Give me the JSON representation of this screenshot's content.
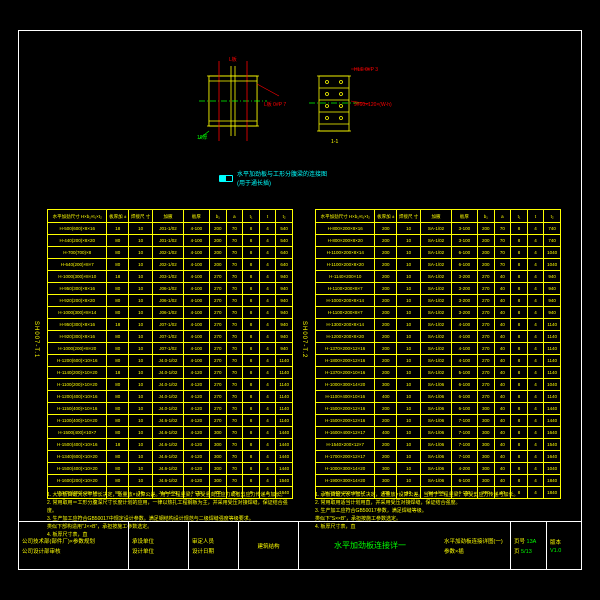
{
  "colors": {
    "bg": "#000",
    "frame": "#fff",
    "line": "#ff0",
    "cyan": "#00ffff",
    "green": "#00ff00",
    "red": "#ff0000"
  },
  "diagram": {
    "title": "水平加劲板与工形分腹梁的连接图",
    "subtitle": "(用于通长插)",
    "labels": [
      "L板",
      "HLE 0#P 3",
      "9#60×120×(W-h)",
      "1-1",
      "10厚",
      "L板 0#P 7"
    ]
  },
  "sideLabelLeft": "SH007-T.1",
  "sideLabelRight": "SH007-T.2",
  "tableLeft": {
    "headers": [
      "水平加劲尺寸\nH×b₁×t₁×t₂",
      "板厚加\n±",
      "焊接尺\n寸",
      "加腋",
      "板厚",
      "b₁",
      "a",
      "t₁",
      "t",
      "t₂"
    ],
    "rows": [
      [
        "H-500(600)×8×16",
        "18",
        "10",
        "J01-1/02",
        "4-100",
        "200",
        "70",
        "8",
        "4",
        "540"
      ],
      [
        "H-440(200)×8×20",
        "80",
        "10",
        "J01-1/02",
        "4-100",
        "200",
        "70",
        "8",
        "4",
        "540"
      ],
      [
        "H-700(700)×8",
        "80",
        "10",
        "J02-1/02",
        "4-100",
        "200",
        "70",
        "8",
        "4",
        "640"
      ],
      [
        "H-640(200)×8×7",
        "80",
        "10",
        "J02-1/02",
        "4-100",
        "200",
        "70",
        "8",
        "4",
        "640"
      ],
      [
        "H-1000(300)×8×10",
        "18",
        "10",
        "J03-1/02",
        "4-100",
        "270",
        "70",
        "8",
        "4",
        "940"
      ],
      [
        "H-950(300)×8×16",
        "80",
        "10",
        "J06-1/02",
        "4-100",
        "270",
        "70",
        "8",
        "4",
        "940"
      ],
      [
        "H-920(200)×8×20",
        "80",
        "10",
        "J06-1/02",
        "4-100",
        "270",
        "70",
        "8",
        "4",
        "940"
      ],
      [
        "H-1000(300)×8×14",
        "80",
        "10",
        "J06-1/02",
        "4-100",
        "270",
        "70",
        "8",
        "4",
        "940"
      ],
      [
        "H-950(300)×8×16",
        "18",
        "10",
        "J07-1/02",
        "4-100",
        "270",
        "70",
        "8",
        "4",
        "940"
      ],
      [
        "H-920(300)×8×16",
        "80",
        "10",
        "J07-1/02",
        "4-100",
        "270",
        "70",
        "8",
        "4",
        "940"
      ],
      [
        "H-1000(200)×8×20",
        "80",
        "10",
        "J07-1/02",
        "4-100",
        "270",
        "70",
        "8",
        "4",
        "940"
      ],
      [
        "H-1200(600)×10×16",
        "80",
        "10",
        "J4.0-1/02",
        "4-100",
        "270",
        "70",
        "8",
        "4",
        "1140"
      ],
      [
        "H-1140(200)×10×20",
        "18",
        "10",
        "J4.0-1/02",
        "4-120",
        "270",
        "70",
        "8",
        "4",
        "1140"
      ],
      [
        "H-1100(200)×10×20",
        "80",
        "10",
        "J4.0-1/02",
        "4-120",
        "270",
        "70",
        "8",
        "4",
        "1140"
      ],
      [
        "H-1200(400)×10×16",
        "80",
        "10",
        "J4.0-1/02",
        "4-120",
        "270",
        "70",
        "8",
        "4",
        "1140"
      ],
      [
        "H-1150(400)×10×16",
        "80",
        "10",
        "J4.0-1/02",
        "4-120",
        "270",
        "70",
        "8",
        "4",
        "1140"
      ],
      [
        "H-1100(400)×10×20",
        "80",
        "10",
        "J4.6-1/02",
        "4-120",
        "270",
        "70",
        "8",
        "4",
        "1140"
      ],
      [
        "H-1500(400)×10×7",
        "80",
        "10",
        "J4.6-1/02",
        "4-120",
        "300",
        "70",
        "8",
        "4",
        "1440"
      ],
      [
        "H-1500(400)×10×16",
        "18",
        "10",
        "J4.6-1/02",
        "4-120",
        "300",
        "70",
        "8",
        "4",
        "1440"
      ],
      [
        "H-1340(600)×10×20",
        "80",
        "10",
        "J4.6-1/02",
        "4-120",
        "300",
        "70",
        "8",
        "4",
        "1440"
      ],
      [
        "H-1500(400)×10×20",
        "80",
        "10",
        "J4.6-1/02",
        "4-120",
        "300",
        "70",
        "8",
        "4",
        "1440"
      ],
      [
        "H-1600(200)×10×20",
        "80",
        "10",
        "J4.6-1/02",
        "4-120",
        "300",
        "70",
        "8",
        "4",
        "1540"
      ],
      [
        "H-1700(400)×10×16",
        "80",
        "10",
        "J4.6-1/02",
        "4-120",
        "300",
        "70",
        "8",
        "4",
        "1640"
      ]
    ]
  },
  "tableRight": {
    "headers": [
      "水平加劲尺寸\nH×b₁×t₁×t₂",
      "板厚加\n±",
      "焊接尺\n寸",
      "加腋",
      "板厚",
      "b₁",
      "a",
      "t₁",
      "t",
      "t₂"
    ],
    "rows": [
      [
        "H-800×200×8×16",
        "200",
        "10",
        "SA-1/02",
        "3-100",
        "200",
        "70",
        "8",
        "4",
        "740"
      ],
      [
        "H-800×200×8×20",
        "200",
        "10",
        "SA-1/02",
        "3-100",
        "200",
        "70",
        "8",
        "4",
        "740"
      ],
      [
        "H-1100×200×8×14",
        "200",
        "10",
        "SA-1/02",
        "6-100",
        "200",
        "70",
        "8",
        "4",
        "1040"
      ],
      [
        "H-1100×200×8×20",
        "200",
        "10",
        "SA-1/02",
        "6-100",
        "200",
        "70",
        "8",
        "4",
        "1040"
      ],
      [
        "H-1140×200×10",
        "200",
        "10",
        "SA-1/02",
        "3-200",
        "270",
        "40",
        "8",
        "4",
        "940"
      ],
      [
        "H-1100×200×8×7",
        "200",
        "10",
        "SA-1/02",
        "3-200",
        "270",
        "40",
        "8",
        "4",
        "940"
      ],
      [
        "H-1000×200×8×14",
        "200",
        "10",
        "SA-1/02",
        "3-200",
        "270",
        "40",
        "8",
        "4",
        "940"
      ],
      [
        "H-1100×200×8×7",
        "200",
        "10",
        "SA-1/02",
        "3-200",
        "270",
        "40",
        "8",
        "4",
        "940"
      ],
      [
        "H-1300×200×8×14",
        "200",
        "10",
        "SA-1/02",
        "4-100",
        "270",
        "40",
        "8",
        "4",
        "1140"
      ],
      [
        "H-1200×200×8×20",
        "200",
        "10",
        "SA-1/02",
        "4-100",
        "270",
        "40",
        "8",
        "4",
        "1140"
      ],
      [
        "H-1370×200×12×16",
        "200",
        "10",
        "SA-1/02",
        "4-100",
        "270",
        "40",
        "8",
        "4",
        "1140"
      ],
      [
        "H-1800×200×12×16",
        "200",
        "10",
        "SA-1/02",
        "4-100",
        "270",
        "40",
        "8",
        "4",
        "1140"
      ],
      [
        "H-1370×200×10×16",
        "200",
        "10",
        "SA-1/02",
        "5-100",
        "270",
        "40",
        "8",
        "4",
        "1140"
      ],
      [
        "H-1000×300×14×20",
        "300",
        "10",
        "SA-1/06",
        "6-100",
        "270",
        "40",
        "8",
        "4",
        "1040"
      ],
      [
        "H-1100×400×10×16",
        "400",
        "10",
        "SA-1/06",
        "6-100",
        "270",
        "40",
        "8",
        "4",
        "1140"
      ],
      [
        "H-1500×200×12×16",
        "200",
        "10",
        "SA-1/06",
        "6-100",
        "300",
        "40",
        "8",
        "4",
        "1440"
      ],
      [
        "H-1500×200×12×16",
        "200",
        "10",
        "SA-1/06",
        "7-100",
        "300",
        "40",
        "8",
        "4",
        "1440"
      ],
      [
        "H-1600×400×12×17",
        "400",
        "10",
        "SA-1/06",
        "7-100",
        "300",
        "40",
        "8",
        "4",
        "1640"
      ],
      [
        "H-1540×200×12×7",
        "200",
        "10",
        "SA-1/06",
        "7-100",
        "300",
        "40",
        "8",
        "4",
        "1540"
      ],
      [
        "H-1700×200×12×17",
        "200",
        "10",
        "SA-1/06",
        "7-100",
        "300",
        "40",
        "8",
        "4",
        "1640"
      ],
      [
        "H-1000×300×14×20",
        "300",
        "10",
        "SA-1/06",
        "4-200",
        "300",
        "40",
        "8",
        "4",
        "1040"
      ],
      [
        "H-1900×300×14×20",
        "300",
        "10",
        "SA-1/06",
        "6-100",
        "300",
        "40",
        "8",
        "4",
        "1840"
      ],
      [
        "H-1840×200×10×17",
        "200",
        "10",
        "SA-1/06",
        "6-100",
        "300",
        "40",
        "8",
        "4",
        "1840"
      ]
    ]
  },
  "notesLeft": [
    "1. 大承板由最大水平加长决定，适量放×设算公差。用于工程竖梁，承受竖向压应力或者剪应力传递与加长。",
    "2. 常用取用＝工形分腹深尺寸长度计划的应用，一律以热扎工程钢板为主，并采用受压对接焊缝，保证结合强度。",
    "3. 生产加工应符合GB50017中规定设计参数。满足钢结构设计规范与二级焊缝强度等级要求。",
    "   类似下部构造用\"J××B\"，承担按施工参数选定。",
    "4. 板厚尺寸表，直"
  ],
  "notesRight": [
    "1. 承板由最大水平加长决定，适量放×设算公差。当用于工程竖梁，承受剪应力传递与加长。",
    "2. 常用取用适当计划用直，并采用受压对接焊缝，保证结合强度。",
    "3. 生产加工应符合GB50017参数，满足焊缝等级。",
    "   类似下\"S××B\"，承担按施工参数选定。",
    "4. 板厚尺寸表，直"
  ],
  "titleblock": {
    "left1_a": "公司技术部(部件厂)×参数规划",
    "left1_b": "公司设计部审核",
    "left2_a": "承设单位",
    "left2_b": "设计单位",
    "left3_a": "审定人员",
    "left3_b": "设计日期",
    "center_top": "建筑结构",
    "center_main": "水平加劲板连接详一",
    "right1": "水平加劲板连接详图(一)",
    "right2": "参数×插",
    "sheet_lbl": "页号",
    "sheet_no": "13A",
    "page_lbl": "页",
    "page": "5/13",
    "ver_lbl": "版本",
    "ver": "V1.0"
  }
}
